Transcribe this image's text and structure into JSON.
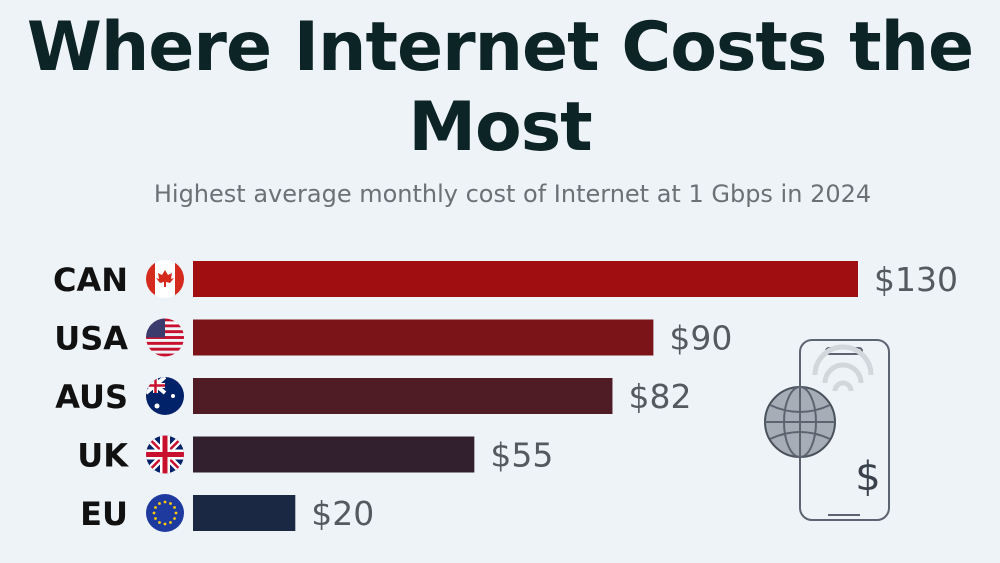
{
  "chart_data": {
    "type": "bar",
    "orientation": "horizontal",
    "title": "Where Internet Costs the Most",
    "subtitle": "Highest average monthly cost of Internet at 1 Gbps in 2024",
    "categories": [
      "CAN",
      "USA",
      "AUS",
      "UK",
      "EU"
    ],
    "values": [
      130,
      90,
      82,
      55,
      20
    ],
    "value_labels": [
      "$130",
      "$90",
      "$82",
      "$55",
      "$20"
    ],
    "flag_icons": [
      "canada-flag",
      "usa-flag",
      "australia-flag",
      "uk-flag",
      "eu-flag"
    ],
    "bar_colors": [
      "#a10e12",
      "#7a1419",
      "#4f1b24",
      "#33202e",
      "#1b2843"
    ],
    "xlim": [
      0,
      130
    ],
    "grid": false,
    "legend": "none"
  },
  "illustration": {
    "icon": "phone-globe-wifi-dollar-icon",
    "dollar_symbol": "$"
  }
}
